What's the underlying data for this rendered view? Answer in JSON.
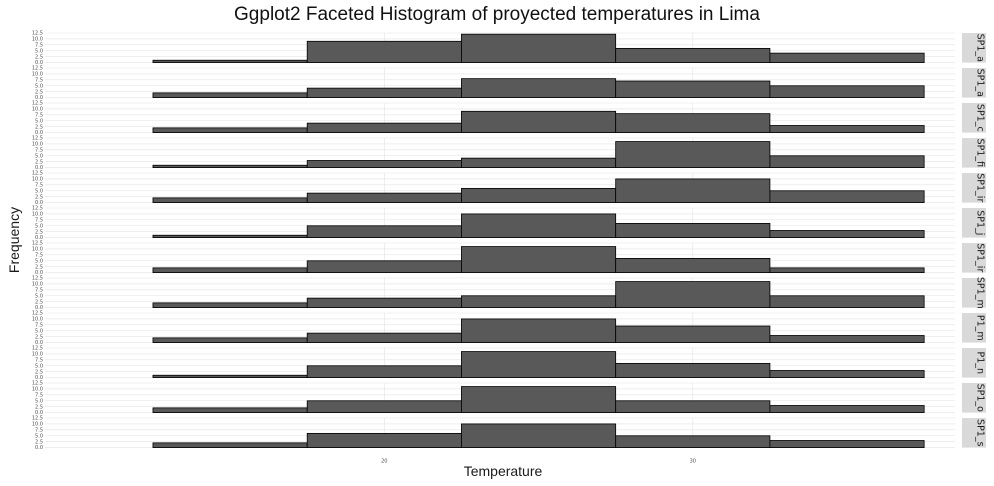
{
  "chart_data": {
    "type": "bar",
    "title": "Ggplot2 Faceted Histogram of proyected temperatures in Lima",
    "xlabel": "Temperature",
    "ylabel": "Frequency",
    "bin_edges": [
      12.5,
      17.5,
      22.5,
      27.5,
      32.5,
      37.5
    ],
    "x_ticks": [
      20,
      30
    ],
    "y_ticks": [
      "0.0",
      "2.5",
      "5.0",
      "7.5",
      "10.0",
      "12.5"
    ],
    "ylim": [
      0,
      12.5
    ],
    "colors": {
      "bar": "#595959",
      "bar_outline": "#000000",
      "panel": "#ffffff",
      "grid": "#e3e3e3",
      "strip": "#d9d9d9"
    },
    "series": [
      {
        "name": "SP1_a",
        "values": [
          1,
          9,
          12,
          6,
          4
        ]
      },
      {
        "name": "SP1_a",
        "values": [
          2,
          4,
          8,
          7,
          5
        ]
      },
      {
        "name": "SP1_c",
        "values": [
          2,
          4,
          9,
          8,
          3
        ]
      },
      {
        "name": "SP1_fi",
        "values": [
          1,
          3,
          4,
          11,
          5
        ]
      },
      {
        "name": "SP1_ir",
        "values": [
          2,
          4,
          6,
          10,
          5
        ]
      },
      {
        "name": "SP1_j",
        "values": [
          1,
          5,
          10,
          6,
          3
        ]
      },
      {
        "name": "SP1_ir",
        "values": [
          2,
          5,
          11,
          6,
          2
        ]
      },
      {
        "name": "SP1_m",
        "values": [
          2,
          4,
          5,
          11,
          5
        ]
      },
      {
        "name": "P1_m",
        "values": [
          2,
          4,
          10,
          7,
          3
        ]
      },
      {
        "name": "P1_n",
        "values": [
          1,
          5,
          11,
          6,
          3
        ]
      },
      {
        "name": "SP1_o",
        "values": [
          2,
          5,
          11,
          5,
          3
        ]
      },
      {
        "name": "SP1_s",
        "values": [
          2,
          6,
          10,
          5,
          3
        ]
      }
    ]
  }
}
